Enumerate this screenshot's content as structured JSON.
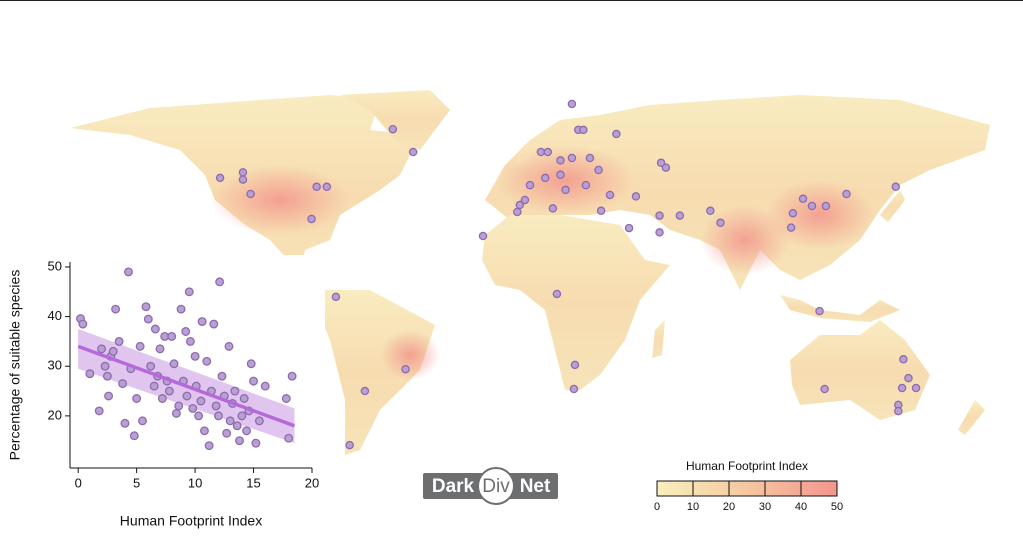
{
  "map": {
    "site_color": "#b9a0d3",
    "site_stroke": "#8d6aae",
    "sites": {
      "lon": [
        16.5,
        -54,
        -46,
        19,
        21,
        34,
        -122,
        -113,
        -113,
        -110,
        -84,
        -80,
        -86,
        -18.5,
        4.3,
        7,
        12,
        16.5,
        23.6,
        27,
        12,
        6,
        0,
        -2,
        -4,
        -5,
        9,
        14,
        22,
        31.5,
        41.7,
        28,
        39,
        51,
        53.5,
        51.6,
        59,
        71,
        75,
        51,
        103.5,
        111,
        116.5,
        124.6,
        107.5,
        144,
        102.8,
        10.6,
        17.7,
        17.3,
        -76.4,
        -49,
        -65,
        -71,
        114,
        116,
        147,
        149,
        146.5,
        152,
        145,
        145
      ],
      "lat": [
        77.5,
        67,
        57.5,
        66.7,
        66.7,
        65,
        46.7,
        49,
        46,
        40,
        43,
        43,
        29.6,
        22.5,
        57.5,
        57.5,
        54,
        55,
        55,
        50,
        48,
        46.7,
        43.7,
        37.5,
        35.4,
        32.5,
        34,
        41.7,
        43.7,
        39.6,
        39,
        33,
        25.8,
        31,
        51,
        53,
        31,
        33,
        28,
        24,
        32,
        35,
        35,
        40,
        38,
        43,
        26,
        -1.2,
        -22.7,
        -30,
        -2.1,
        -24,
        -30.6,
        -47,
        -6.4,
        -30,
        -21,
        -26.7,
        -29.7,
        -29.7,
        -34.8,
        -36.7
      ]
    }
  },
  "chart_data": [
    {
      "type": "scatter",
      "xlabel": "Human Footprint Index",
      "ylabel": "Percentage of suitable species",
      "point_color": "#b9a0d3",
      "point_stroke": "#8d6aae",
      "x": [
        0.2,
        0.4,
        1,
        1.8,
        2,
        2.3,
        2.5,
        2.6,
        2.8,
        3,
        3.2,
        3.5,
        3.8,
        4,
        4.3,
        4.5,
        4.8,
        5,
        5.3,
        5.5,
        5.8,
        6,
        6.2,
        6.5,
        6.6,
        6.8,
        7,
        7.2,
        7.4,
        7.6,
        7.8,
        8,
        8.2,
        8.4,
        8.6,
        8.8,
        9,
        9.2,
        9.3,
        9.5,
        9.6,
        9.8,
        10,
        10.1,
        10.3,
        10.5,
        10.6,
        10.8,
        11,
        11.2,
        11.4,
        11.6,
        11.8,
        12,
        12.1,
        12.3,
        12.5,
        12.7,
        12.9,
        13,
        13.2,
        13.4,
        13.6,
        13.8,
        14,
        14.2,
        14.4,
        14.6,
        14.8,
        15,
        15.2,
        15.5,
        16,
        17.8,
        18,
        18.3
      ],
      "values": [
        39.6,
        38.5,
        28.5,
        21,
        33.5,
        30,
        28,
        24,
        32,
        33,
        41.5,
        35,
        26.5,
        18.5,
        49,
        29.5,
        16,
        23.5,
        34,
        19,
        42,
        39.5,
        30,
        26,
        37.5,
        28,
        33.5,
        23.5,
        36,
        27,
        25,
        36,
        30.5,
        20.5,
        22,
        41.5,
        27,
        37,
        24,
        45,
        35,
        21.5,
        32,
        26,
        20,
        23,
        39,
        17,
        31,
        14,
        25,
        38.5,
        22,
        20,
        47,
        28,
        24,
        16.5,
        34,
        19,
        22.5,
        25,
        18,
        15,
        20,
        23.5,
        17,
        21,
        30.5,
        27,
        14.5,
        19,
        26,
        23.5,
        15.5,
        28
      ],
      "fit": {
        "color": "#b46ad8",
        "band_color": "#d6b3ea",
        "x": [
          0,
          18.5
        ],
        "values": [
          34,
          18
        ],
        "lower": [
          29.5,
          14.5
        ],
        "upper": [
          37.5,
          21.5
        ]
      },
      "xlim": [
        -0.7,
        20
      ],
      "ylim": [
        9.5,
        51
      ],
      "xticks": [
        0,
        5,
        10,
        15,
        20
      ],
      "yticks": [
        20,
        30,
        40,
        50
      ]
    },
    {
      "type": "colorbar",
      "title": "Human Footprint Index",
      "lim": [
        0,
        50
      ],
      "ticks": [
        0,
        10,
        20,
        30,
        40,
        50
      ],
      "colors": [
        "#f8efbd",
        "#f6d6a8",
        "#f5b79a",
        "#f3958c"
      ]
    }
  ],
  "logo": {
    "dark": "Dark",
    "div": "Div",
    "net": "Net"
  }
}
